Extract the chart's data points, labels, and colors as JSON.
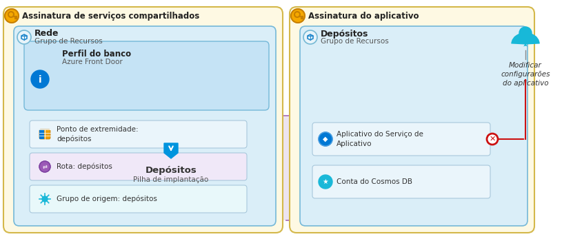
{
  "bg_color": "#ffffff",
  "left_sub_label": "Assinatura de serviços compartilhados",
  "right_sub_label": "Assinatura do aplicativo",
  "sub_box_fc": "#fef9e3",
  "sub_box_ec": "#d4b84a",
  "rg_box_fc": "#daeef8",
  "rg_box_ec": "#74b8d8",
  "profile_box_fc": "#c5e3f5",
  "profile_box_ec": "#74b8d8",
  "dashed_fc": "#ede4f0",
  "dashed_ec": "#b07cbe",
  "item_fc": "#eaf5fb",
  "item_ec": "#a8c8dc",
  "right_inner_fc": "#daeef8",
  "right_inner_ec": "#74b8d8",
  "right_item_fc": "#eaf5fb",
  "right_item_ec": "#a8c8dc",
  "key_fc": "#f5a800",
  "key_ec": "#c88000",
  "rg_icon_fc": "#e8f4fa",
  "rg_icon_ec": "#74b8d4",
  "user_color": "#18b8d8",
  "deny_color": "#cc1111",
  "left_rg_label": "Rede",
  "left_rg_sub": "Grupo de Recursos",
  "right_rg_label": "Depósitos",
  "right_rg_sub": "Grupo de Recursos",
  "profile_label": "Perfil do banco",
  "profile_sub": "Azure Front Door",
  "deploy_label": "Depósitos",
  "deploy_sub": "Pilha de implantação",
  "item1": "Ponto de extremidade:\ndepósitos",
  "item2": "Rota: depósitos",
  "item3": "Grupo de origem: depósitos",
  "ritem1": "Aplicativo do Serviço de\nAplicativo",
  "ritem2": "Conta do Cosmos DB",
  "action": "Modificar\nconfigurarões\ndo aplicativo"
}
